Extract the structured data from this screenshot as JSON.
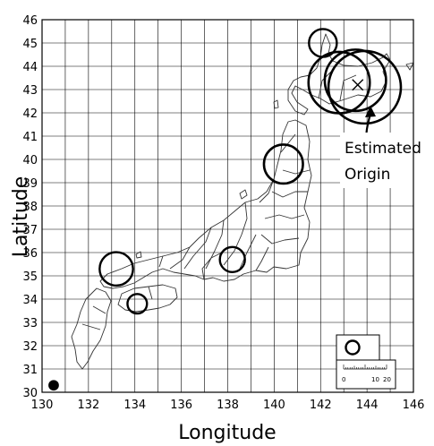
{
  "axes": {
    "xlabel": "Longitude",
    "ylabel": "Latitude",
    "x_ticks": [
      "130",
      "132",
      "134",
      "136",
      "138",
      "140",
      "142",
      "144",
      "146"
    ],
    "y_ticks": [
      "30",
      "31",
      "32",
      "33",
      "34",
      "35",
      "36",
      "37",
      "38",
      "39",
      "40",
      "41",
      "42",
      "43",
      "44",
      "45",
      "46"
    ],
    "xlim": [
      130,
      146
    ],
    "ylim": [
      30,
      46
    ]
  },
  "annotation": {
    "line1": "Estimated",
    "line2": "Origin",
    "marker_lon": 143.6,
    "marker_lat": 43.2
  },
  "scale_bar": {
    "labels": [
      "0",
      "10",
      "20"
    ]
  },
  "chart_data": {
    "type": "scatter",
    "title": "",
    "xlabel": "Longitude",
    "ylabel": "Latitude",
    "xlim": [
      130,
      146
    ],
    "ylim": [
      30,
      46
    ],
    "grid": true,
    "points": [
      {
        "lon": 142.1,
        "lat": 45.0,
        "radius_km": 5
      },
      {
        "lon": 142.8,
        "lat": 43.3,
        "radius_km": 11
      },
      {
        "lon": 143.5,
        "lat": 43.4,
        "radius_km": 11
      },
      {
        "lon": 143.9,
        "lat": 43.1,
        "radius_km": 13
      },
      {
        "lon": 140.4,
        "lat": 39.8,
        "radius_km": 7
      },
      {
        "lon": 138.2,
        "lat": 35.7,
        "radius_km": 4.5
      },
      {
        "lon": 133.2,
        "lat": 35.3,
        "radius_km": 6
      },
      {
        "lon": 134.1,
        "lat": 33.8,
        "radius_km": 3.5
      },
      {
        "lon": 130.5,
        "lat": 30.3,
        "radius_km": 1.5
      }
    ]
  },
  "colors": {
    "grid": "#000000",
    "coast": "#333333",
    "marker": "#000000",
    "background": "#ffffff"
  }
}
